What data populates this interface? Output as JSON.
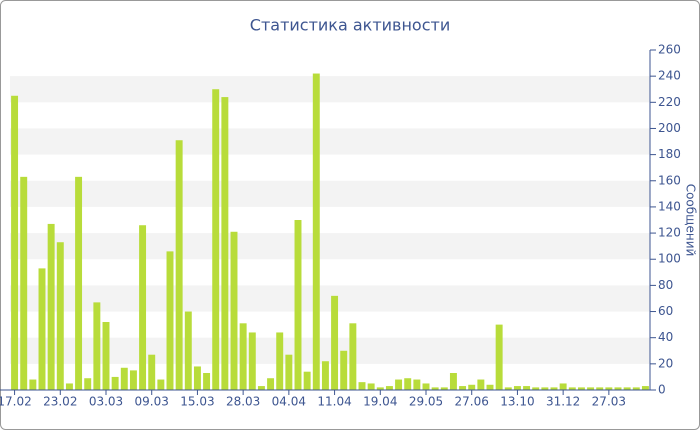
{
  "chart_data": {
    "type": "bar",
    "title": "Статистика активности",
    "y_label": "Сообщений",
    "categories": [
      "17.02",
      null,
      null,
      null,
      null,
      "23.02",
      null,
      null,
      null,
      null,
      "03.03",
      null,
      null,
      null,
      null,
      "09.03",
      null,
      null,
      null,
      null,
      "15.03",
      null,
      null,
      null,
      null,
      "28.03",
      null,
      null,
      null,
      null,
      "04.04",
      null,
      null,
      null,
      null,
      "11.04",
      null,
      null,
      null,
      null,
      "19.04",
      null,
      null,
      null,
      null,
      "29.05",
      null,
      null,
      null,
      null,
      "27.06",
      null,
      null,
      null,
      null,
      "13.10",
      null,
      null,
      null,
      null,
      "31.12",
      null,
      null,
      null,
      null,
      "27.03",
      null,
      null,
      null,
      null
    ],
    "values": [
      225,
      163,
      8,
      93,
      127,
      113,
      5,
      163,
      9,
      67,
      52,
      10,
      17,
      15,
      126,
      27,
      8,
      106,
      191,
      60,
      18,
      13,
      230,
      224,
      121,
      51,
      44,
      3,
      9,
      44,
      27,
      130,
      14,
      242,
      22,
      72,
      30,
      51,
      6,
      5,
      2,
      3,
      8,
      9,
      8,
      5,
      2,
      2,
      13,
      3,
      4,
      8,
      4,
      50,
      2,
      3,
      3,
      2,
      2,
      2,
      5,
      2,
      2,
      2,
      2,
      2,
      2,
      2,
      2,
      3
    ],
    "color": "#b8dc3a",
    "ylim": [
      0,
      260
    ],
    "yticks": [
      0,
      20,
      40,
      60,
      80,
      100,
      120,
      140,
      160,
      180,
      200,
      220,
      240,
      260
    ],
    "y_axis_side": "right",
    "grid": "bands"
  }
}
